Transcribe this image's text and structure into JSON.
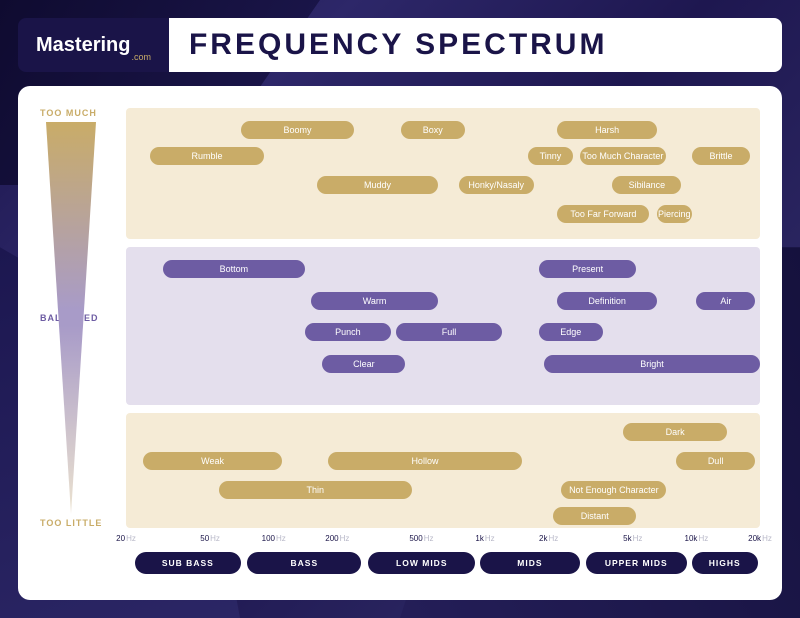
{
  "colors": {
    "background_gradient": [
      "#1a1448",
      "#2d2769",
      "#1e1750",
      "#2a2560",
      "#181340"
    ],
    "card_bg": "#ffffff",
    "gold": "#c9ac68",
    "purple": "#6d5ca3",
    "zone_gold": "#f5ebd6",
    "zone_purple": "#e4dfed",
    "navy": "#1a1448",
    "tick_unit": "#b8b8c8"
  },
  "header": {
    "logo_main": "Mastering",
    "logo_sub": ".com",
    "title": "FREQUENCY SPECTRUM"
  },
  "y_axis": {
    "top": "TOO MUCH",
    "mid": "BALANCED",
    "bottom": "TOO LITTLE"
  },
  "chart": {
    "type": "infographic",
    "freq_min_hz": 20,
    "freq_max_hz": 20000,
    "scale": "log",
    "plot_height_rows": 16,
    "zone_rows": {
      "too_much": [
        0,
        5
      ],
      "balanced": [
        5.3,
        11.3
      ],
      "too_little": [
        11.6,
        16
      ]
    },
    "pill_fontsize": 9,
    "label_fontsize": 9
  },
  "ticks": [
    {
      "hz": 20,
      "label": "20",
      "unit": "Hz"
    },
    {
      "hz": 50,
      "label": "50",
      "unit": "Hz"
    },
    {
      "hz": 100,
      "label": "100",
      "unit": "Hz"
    },
    {
      "hz": 200,
      "label": "200",
      "unit": "Hz"
    },
    {
      "hz": 500,
      "label": "500",
      "unit": "Hz"
    },
    {
      "hz": 1000,
      "label": "1k",
      "unit": "Hz"
    },
    {
      "hz": 2000,
      "label": "2k",
      "unit": "Hz"
    },
    {
      "hz": 5000,
      "label": "5k",
      "unit": "Hz"
    },
    {
      "hz": 10000,
      "label": "10k",
      "unit": "Hz"
    },
    {
      "hz": 20000,
      "label": "20k",
      "unit": "Hz"
    }
  ],
  "bands": [
    {
      "label": "SUB BASS",
      "from_hz": 22,
      "to_hz": 70
    },
    {
      "label": "BASS",
      "from_hz": 75,
      "to_hz": 260
    },
    {
      "label": "LOW MIDS",
      "from_hz": 280,
      "to_hz": 900
    },
    {
      "label": "MIDS",
      "from_hz": 950,
      "to_hz": 2800
    },
    {
      "label": "UPPER MIDS",
      "from_hz": 3000,
      "to_hz": 9000
    },
    {
      "label": "HIGHS",
      "from_hz": 9500,
      "to_hz": 19500
    }
  ],
  "descriptors": [
    {
      "label": "Boomy",
      "from_hz": 70,
      "to_hz": 240,
      "row": 0.5,
      "style": "gold"
    },
    {
      "label": "Boxy",
      "from_hz": 400,
      "to_hz": 800,
      "row": 0.5,
      "style": "gold"
    },
    {
      "label": "Harsh",
      "from_hz": 2200,
      "to_hz": 6500,
      "row": 0.5,
      "style": "gold"
    },
    {
      "label": "Rumble",
      "from_hz": 26,
      "to_hz": 90,
      "row": 1.5,
      "style": "gold"
    },
    {
      "label": "Tinny",
      "from_hz": 1600,
      "to_hz": 2600,
      "row": 1.5,
      "style": "gold"
    },
    {
      "label": "Too Much Character",
      "from_hz": 2800,
      "to_hz": 7200,
      "row": 1.5,
      "style": "gold"
    },
    {
      "label": "Brittle",
      "from_hz": 9500,
      "to_hz": 18000,
      "row": 1.5,
      "style": "gold"
    },
    {
      "label": "Muddy",
      "from_hz": 160,
      "to_hz": 600,
      "row": 2.6,
      "style": "gold"
    },
    {
      "label": "Honky/Nasaly",
      "from_hz": 750,
      "to_hz": 1700,
      "row": 2.6,
      "style": "gold"
    },
    {
      "label": "Sibilance",
      "from_hz": 4000,
      "to_hz": 8500,
      "row": 2.6,
      "style": "gold"
    },
    {
      "label": "Too Far Forward",
      "from_hz": 2200,
      "to_hz": 6000,
      "row": 3.7,
      "style": "gold"
    },
    {
      "label": "Piercing",
      "from_hz": 6500,
      "to_hz": 9500,
      "row": 3.7,
      "style": "gold"
    },
    {
      "label": "Bottom",
      "from_hz": 30,
      "to_hz": 140,
      "row": 5.8,
      "style": "purple"
    },
    {
      "label": "Present",
      "from_hz": 1800,
      "to_hz": 5200,
      "row": 5.8,
      "style": "purple"
    },
    {
      "label": "Warm",
      "from_hz": 150,
      "to_hz": 600,
      "row": 7.0,
      "style": "purple"
    },
    {
      "label": "Definition",
      "from_hz": 2200,
      "to_hz": 6500,
      "row": 7.0,
      "style": "purple"
    },
    {
      "label": "Air",
      "from_hz": 10000,
      "to_hz": 19000,
      "row": 7.0,
      "style": "purple"
    },
    {
      "label": "Punch",
      "from_hz": 140,
      "to_hz": 360,
      "row": 8.2,
      "style": "purple"
    },
    {
      "label": "Full",
      "from_hz": 380,
      "to_hz": 1200,
      "row": 8.2,
      "style": "purple"
    },
    {
      "label": "Edge",
      "from_hz": 1800,
      "to_hz": 3600,
      "row": 8.2,
      "style": "purple"
    },
    {
      "label": "Clear",
      "from_hz": 170,
      "to_hz": 420,
      "row": 9.4,
      "style": "purple"
    },
    {
      "label": "Bright",
      "from_hz": 1900,
      "to_hz": 20000,
      "row": 9.4,
      "style": "purple"
    },
    {
      "label": "Dark",
      "from_hz": 4500,
      "to_hz": 14000,
      "row": 12.0,
      "style": "gold"
    },
    {
      "label": "Weak",
      "from_hz": 24,
      "to_hz": 110,
      "row": 13.1,
      "style": "gold"
    },
    {
      "label": "Hollow",
      "from_hz": 180,
      "to_hz": 1500,
      "row": 13.1,
      "style": "gold"
    },
    {
      "label": "Dull",
      "from_hz": 8000,
      "to_hz": 19000,
      "row": 13.1,
      "style": "gold"
    },
    {
      "label": "Thin",
      "from_hz": 55,
      "to_hz": 450,
      "row": 14.2,
      "style": "gold"
    },
    {
      "label": "Not Enough Character",
      "from_hz": 2300,
      "to_hz": 7200,
      "row": 14.2,
      "style": "gold"
    },
    {
      "label": "Distant",
      "from_hz": 2100,
      "to_hz": 5200,
      "row": 15.2,
      "style": "gold"
    }
  ]
}
